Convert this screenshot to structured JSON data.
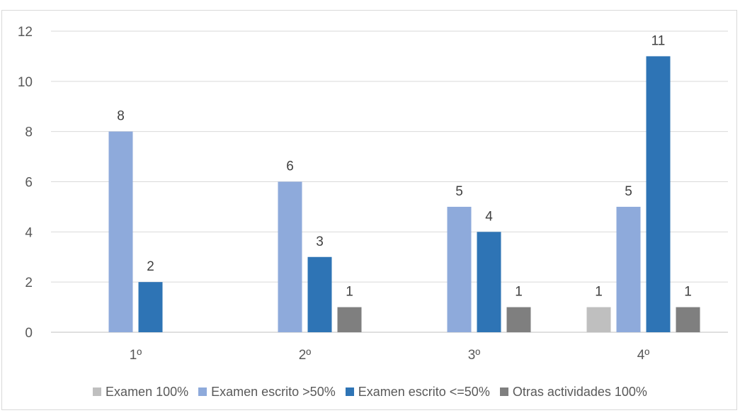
{
  "chart_data": {
    "type": "bar",
    "categories": [
      "1º",
      "2º",
      "3º",
      "4º"
    ],
    "ylim": [
      0,
      12
    ],
    "yticks": [
      0,
      2,
      4,
      6,
      8,
      10,
      12
    ],
    "grid": true,
    "legend_position": "bottom",
    "series": [
      {
        "name": "Examen 100%",
        "color": "#bfbfbf",
        "values": [
          0,
          0,
          0,
          1
        ]
      },
      {
        "name": "Examen escrito >50%",
        "color": "#8eaadb",
        "values": [
          8,
          6,
          5,
          5
        ]
      },
      {
        "name": "Examen escrito <=50%",
        "color": "#2e74b5",
        "values": [
          2,
          3,
          4,
          11
        ]
      },
      {
        "name": "Otras actividades 100%",
        "color": "#7f7f7f",
        "values": [
          0,
          1,
          1,
          1
        ]
      }
    ]
  }
}
